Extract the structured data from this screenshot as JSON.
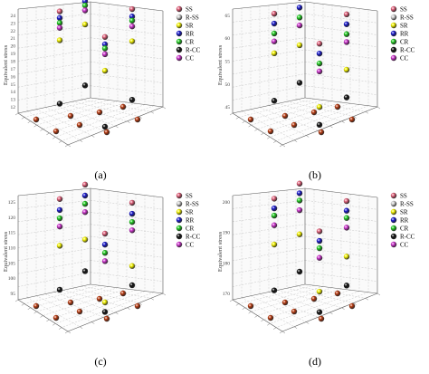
{
  "figure": {
    "panel_labels": [
      "(a)",
      "(b)",
      "(c)",
      "(d)"
    ],
    "zlabel": "Equivalent stress"
  },
  "colors": {
    "SS": "#e0607a",
    "R-SS": "#cfcfcf",
    "SR": "#f2f200",
    "RR": "#1a1acc",
    "CR": "#22cc22",
    "R-CC": "#111111",
    "CC": "#cc33cc",
    "base": "#b83a10"
  },
  "chart_data": [
    {
      "type": "scatter3d",
      "panel": "(a)",
      "zlabel": "Equivalent stress",
      "zticks": [
        "12",
        "13",
        "14",
        "15",
        "16",
        "17",
        "18",
        "19",
        "20",
        "21",
        "22",
        "23",
        "24"
      ],
      "zlim": [
        12,
        24
      ],
      "legend": [
        "SS",
        "R-SS",
        "SR",
        "RR",
        "CR",
        "R-CC",
        "CC"
      ],
      "legend_position": "right",
      "series": [
        {
          "name": "SS",
          "values": [
            23.8,
            23.5,
            23.2,
            22.9
          ]
        },
        {
          "name": "RR",
          "values": [
            23.0,
            22.6,
            22.3,
            22.0
          ]
        },
        {
          "name": "CR",
          "values": [
            22.4,
            22.1,
            21.8,
            21.5
          ]
        },
        {
          "name": "CC",
          "values": [
            21.8,
            21.5,
            21.1,
            20.8
          ]
        },
        {
          "name": "SR",
          "values": [
            20.3,
            19.8,
            19.3,
            18.8
          ]
        },
        {
          "name": "R-CC",
          "values": [
            12.6,
            12.4,
            12.2,
            12.0
          ]
        }
      ]
    },
    {
      "type": "scatter3d",
      "panel": "(b)",
      "zlabel": "Equivalent stress",
      "zticks": [
        "45",
        "50",
        "55",
        "60",
        "65"
      ],
      "zlim": [
        43,
        68
      ],
      "legend": [
        "SS",
        "R-SS",
        "SR",
        "RR",
        "CR",
        "R-CC",
        "CC"
      ],
      "legend_position": "right",
      "series": [
        {
          "name": "SS",
          "values": [
            67.0,
            66.0,
            65.0,
            64.0
          ]
        },
        {
          "name": "RR",
          "values": [
            64.5,
            63.5,
            62.5,
            61.5
          ]
        },
        {
          "name": "CR",
          "values": [
            62.0,
            61.0,
            60.0,
            59.0
          ]
        },
        {
          "name": "CC",
          "values": [
            60.0,
            59.0,
            58.0,
            57.0
          ]
        },
        {
          "name": "SR",
          "values": [
            57.0,
            54.0,
            51.0,
            48.0
          ]
        },
        {
          "name": "R-CC",
          "values": [
            45.0,
            44.5,
            44.0,
            43.5
          ]
        }
      ]
    },
    {
      "type": "scatter3d",
      "panel": "(c)",
      "zlabel": "Equivalent stress",
      "zticks": [
        "95",
        "100",
        "105",
        "110",
        "115",
        "120",
        "125"
      ],
      "zlim": [
        92,
        128
      ],
      "legend": [
        "SS",
        "R-SS",
        "SR",
        "RR",
        "CR",
        "R-CC",
        "CC"
      ],
      "legend_position": "right",
      "series": [
        {
          "name": "SS",
          "values": [
            127.0,
            125.0,
            123.0,
            121.0
          ]
        },
        {
          "name": "RR",
          "values": [
            123.0,
            121.0,
            119.0,
            117.0
          ]
        },
        {
          "name": "CR",
          "values": [
            120.0,
            118.0,
            116.0,
            114.0
          ]
        },
        {
          "name": "CC",
          "values": [
            117.0,
            115.0,
            113.0,
            111.0
          ]
        },
        {
          "name": "SR",
          "values": [
            110.0,
            105.0,
            100.0,
            96.0
          ]
        },
        {
          "name": "R-CC",
          "values": [
            94.0,
            93.5,
            93.0,
            92.5
          ]
        }
      ]
    },
    {
      "type": "scatter3d",
      "panel": "(d)",
      "zlabel": "Equivalent stress",
      "zticks": [
        "170",
        "180",
        "190",
        "200"
      ],
      "zlim": [
        167,
        208
      ],
      "legend": [
        "SS",
        "R-SS",
        "SR",
        "RR",
        "CR",
        "R-CC",
        "CC"
      ],
      "legend_position": "right",
      "series": [
        {
          "name": "SS",
          "values": [
            207.0,
            205.0,
            203.0,
            201.0
          ]
        },
        {
          "name": "RR",
          "values": [
            203.0,
            201.0,
            199.0,
            197.0
          ]
        },
        {
          "name": "CR",
          "values": [
            200.0,
            198.0,
            196.0,
            194.0
          ]
        },
        {
          "name": "CC",
          "values": [
            196.0,
            194.0,
            192.0,
            190.0
          ]
        },
        {
          "name": "SR",
          "values": [
            188.0,
            184.0,
            180.0,
            176.0
          ]
        },
        {
          "name": "R-CC",
          "values": [
            169.0,
            168.5,
            168.0,
            167.5
          ]
        }
      ]
    }
  ]
}
